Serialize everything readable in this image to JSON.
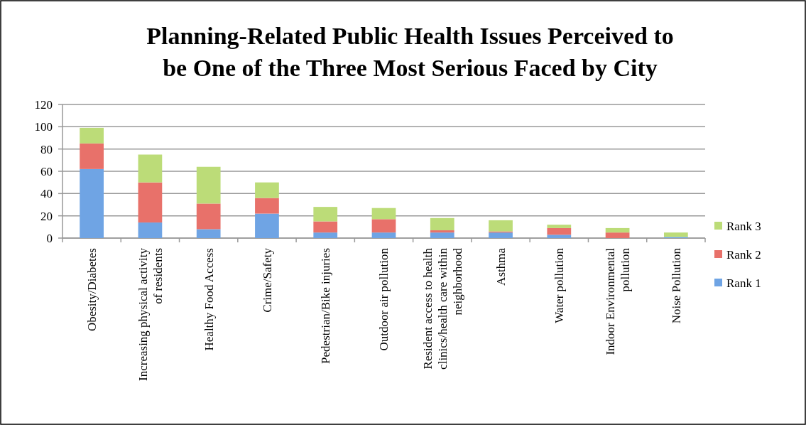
{
  "chart_data": {
    "type": "bar",
    "stacked": true,
    "title": "Planning-Related Public Health Issues Perceived to be One of the Three Most Serious Faced by City",
    "categories": [
      "Obesity/Diabetes",
      "Increasing physical activity of residents",
      "Healthy Food Access",
      "Crime/Safety",
      "Pedestrian/Bike injuries",
      "Outdoor air pollution",
      "Resident access to health clinics/health care within neighborhood",
      "Asthma",
      "Water pollution",
      "Indoor Environmental pollution",
      "Noise Pollution"
    ],
    "series": [
      {
        "name": "Rank 1",
        "color": "#6fa4e4",
        "values": [
          62,
          14,
          8,
          22,
          5,
          5,
          5,
          5,
          3,
          0,
          1
        ]
      },
      {
        "name": "Rank 2",
        "color": "#e8716a",
        "values": [
          23,
          36,
          23,
          14,
          10,
          12,
          2,
          1,
          6,
          5,
          0
        ]
      },
      {
        "name": "Rank 3",
        "color": "#bcdc78",
        "values": [
          14,
          25,
          33,
          14,
          13,
          10,
          11,
          10,
          3,
          4,
          4
        ]
      }
    ],
    "ylim": [
      0,
      120
    ],
    "yticks": [
      0,
      20,
      40,
      60,
      80,
      100,
      120
    ],
    "grid": "y",
    "legend": "right"
  }
}
